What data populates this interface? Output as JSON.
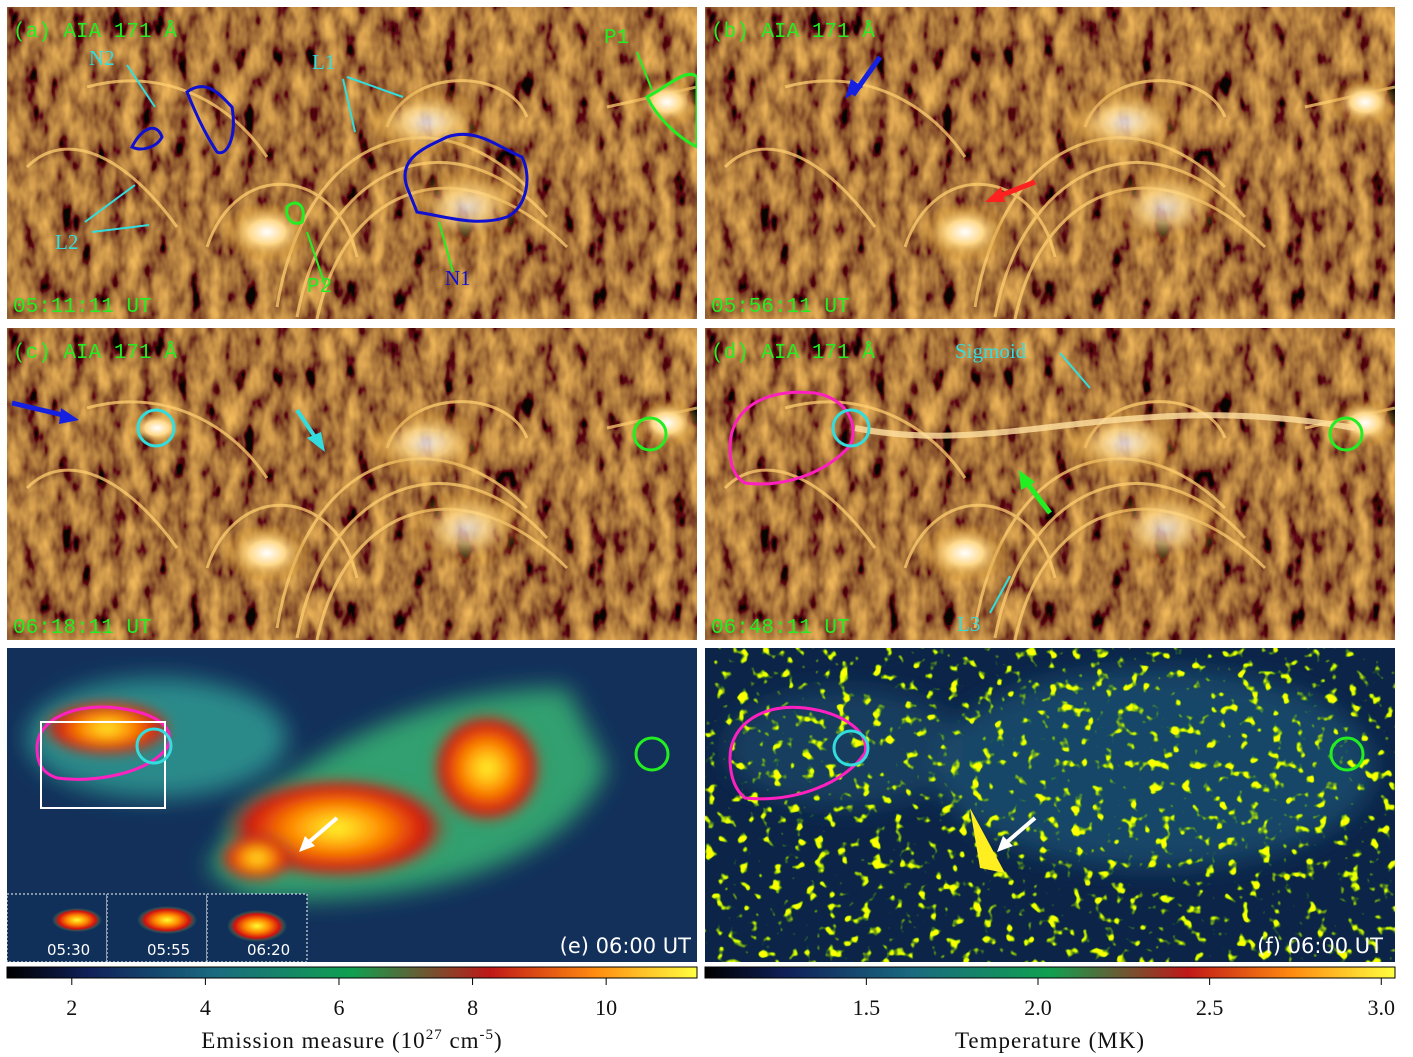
{
  "panels": [
    {
      "label": "(a) AIA 171 Å",
      "time": "05:11:11 UT",
      "annotations": [
        "N2",
        "L1",
        "P1",
        "L2",
        "P2",
        "N1"
      ]
    },
    {
      "label": "(b) AIA 171 Å",
      "time": "05:56:11 UT"
    },
    {
      "label": "(c) AIA 171 Å",
      "time": "06:18:11 UT"
    },
    {
      "label": "(d) AIA 171 Å",
      "time": "06:48:11 UT",
      "annotations": [
        "Sigmoid",
        "L3"
      ]
    },
    {
      "label": "(e) 06:00 UT",
      "insets": [
        "05:30",
        "05:55",
        "06:20"
      ]
    },
    {
      "label": "(f) 06:00 UT"
    }
  ],
  "colorbars": [
    {
      "title": [
        "Emission measure (10",
        "27",
        " cm",
        "-5",
        ")"
      ],
      "lim": [
        1.03,
        11.36
      ],
      "ticks": [
        2,
        4,
        6,
        8,
        10
      ]
    },
    {
      "title": [
        "Temperature (MK)"
      ],
      "lim": [
        1.03,
        3.04
      ],
      "ticks": [
        1.5,
        {
          "value": 2,
          "label": "2.0"
        },
        2.5,
        {
          "value": 3,
          "label": "3.0"
        }
      ]
    }
  ]
}
